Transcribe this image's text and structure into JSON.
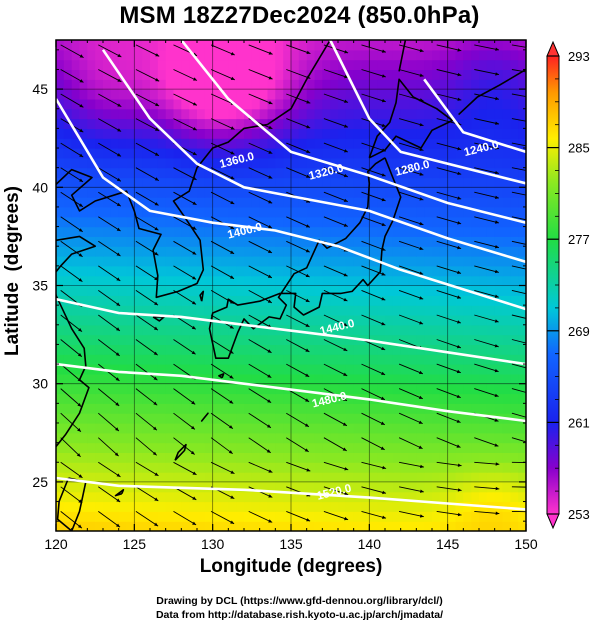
{
  "title": "MSM 18Z27Dec2024 (850.0hPa)",
  "x_axis": {
    "label": "Longitude (degrees)",
    "ticks": [
      "120",
      "125",
      "130",
      "135",
      "140",
      "145",
      "150"
    ]
  },
  "y_axis": {
    "label": "Latitude  (degrees)",
    "ticks": [
      "25",
      "30",
      "35",
      "40",
      "45"
    ]
  },
  "colorbar": {
    "ticks": [
      "293",
      "285",
      "277",
      "269",
      "261",
      "253"
    ]
  },
  "contour_labels": [
    "1360.0",
    "1320.0",
    "1280.0",
    "1240.0",
    "1400.0",
    "1440.0",
    "1480.0",
    "1520.0"
  ],
  "credits": [
    "Drawing by DCL (https://www.gfd-dennou.org/library/dcl/)",
    "Data from http://database.rish.kyoto-u.ac.jp/arch/jmadata/"
  ],
  "chart_data": {
    "type": "heatmap",
    "title": "MSM 18Z27Dec2024 (850.0hPa)",
    "xlabel": "Longitude (degrees)",
    "ylabel": "Latitude  (degrees)",
    "xlim": [
      120,
      150
    ],
    "ylim": [
      22.5,
      47.5
    ],
    "colorbar_range": [
      253,
      293
    ],
    "colorbar_ticks": [
      253,
      261,
      269,
      277,
      285,
      293
    ],
    "contours": [
      {
        "value": 1240,
        "lon": [
          143.5,
          146,
          150
        ],
        "lat": [
          45.5,
          42.8,
          41.8
        ]
      },
      {
        "value": 1280,
        "lon": [
          137.5,
          140,
          142,
          150
        ],
        "lat": [
          47.5,
          43.5,
          41.8,
          40.2
        ]
      },
      {
        "value": 1320,
        "lon": [
          128,
          131,
          135,
          140,
          145,
          150
        ],
        "lat": [
          47.5,
          44.5,
          41.8,
          40.6,
          39.2,
          38.2
        ]
      },
      {
        "value": 1360,
        "lon": [
          123,
          126,
          129,
          132,
          136,
          140,
          145,
          150
        ],
        "lat": [
          47,
          43.5,
          41.2,
          40.0,
          39.4,
          38.8,
          37.4,
          36.2
        ]
      },
      {
        "value": 1400,
        "lon": [
          120,
          123,
          126,
          130,
          134,
          138,
          142,
          146,
          150
        ],
        "lat": [
          44.5,
          40.5,
          38.8,
          38.2,
          37.8,
          37.0,
          35.8,
          34.8,
          33.8
        ]
      },
      {
        "value": 1440,
        "lon": [
          120,
          124,
          128,
          132,
          136,
          140,
          145,
          150
        ],
        "lat": [
          34.3,
          33.6,
          33.4,
          33.0,
          32.6,
          32.2,
          31.6,
          31.0
        ]
      },
      {
        "value": 1480,
        "lon": [
          120,
          124,
          128,
          132,
          136,
          140,
          145,
          150
        ],
        "lat": [
          31.0,
          30.6,
          30.4,
          30.0,
          29.6,
          29.2,
          28.6,
          28.1
        ]
      },
      {
        "value": 1520,
        "lon": [
          120,
          124,
          128,
          132,
          136,
          140,
          145,
          150
        ],
        "lat": [
          25.2,
          24.8,
          24.7,
          24.6,
          24.4,
          24.2,
          23.9,
          23.6
        ]
      }
    ],
    "contour_label_positions": [
      {
        "text": "1360.0",
        "lon": 131.6,
        "lat": 41.2
      },
      {
        "text": "1320.0",
        "lon": 137.3,
        "lat": 40.6
      },
      {
        "text": "1280.0",
        "lon": 142.8,
        "lat": 40.8
      },
      {
        "text": "1240.0",
        "lon": 147.2,
        "lat": 41.8
      },
      {
        "text": "1400.0",
        "lon": 132.1,
        "lat": 37.6
      },
      {
        "text": "1440.0",
        "lon": 138.0,
        "lat": 32.7
      },
      {
        "text": "1480.0",
        "lon": 137.5,
        "lat": 29.0
      },
      {
        "text": "1520.0",
        "lon": 137.8,
        "lat": 24.3
      }
    ],
    "grid": true,
    "legend": "colorbar right"
  }
}
